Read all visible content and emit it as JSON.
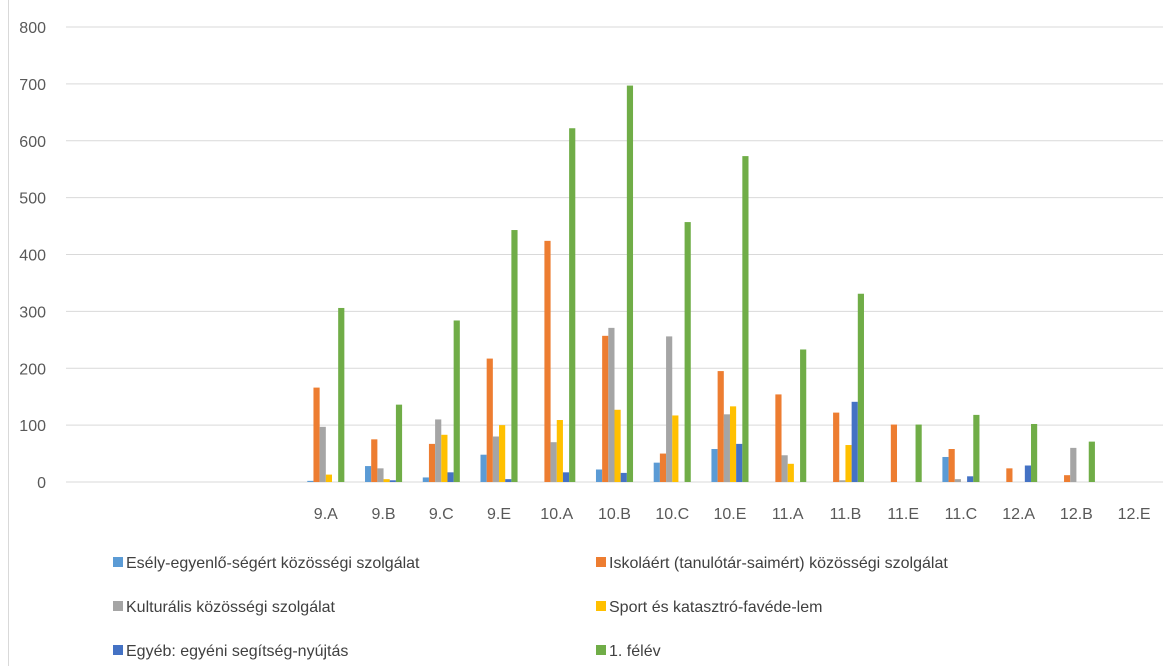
{
  "chart_data": {
    "type": "bar",
    "categories": [
      "",
      "",
      "",
      "",
      "9.A",
      "9.B",
      "9.C",
      "9.E",
      "10.A",
      "10.B",
      "10.C",
      "10.E",
      "11.A",
      "11.B",
      "11.E",
      "11.C",
      "12.A",
      "12.B",
      "12.E"
    ],
    "series": [
      {
        "name": "Esély-egyenlő-ségért közösségi szolgálat",
        "color": "#5b9bd5",
        "values": [
          0,
          0,
          0,
          0,
          2,
          28,
          8,
          48,
          0,
          22,
          34,
          58,
          0,
          0,
          0,
          44,
          0,
          0,
          0
        ]
      },
      {
        "name": "Iskoláért (tanulótár-saimért) közösségi szolgálat",
        "color": "#ed7d31",
        "values": [
          0,
          0,
          0,
          0,
          166,
          75,
          67,
          217,
          424,
          257,
          50,
          195,
          154,
          122,
          101,
          58,
          24,
          12,
          0
        ]
      },
      {
        "name": "Kulturális közösségi szolgálat",
        "color": "#a5a5a5",
        "values": [
          0,
          0,
          0,
          0,
          97,
          24,
          110,
          80,
          70,
          271,
          256,
          119,
          47,
          3,
          0,
          5,
          0,
          60,
          0
        ]
      },
      {
        "name": "Sport és  katasztró-favéde-lem",
        "color": "#ffc000",
        "values": [
          0,
          0,
          0,
          0,
          13,
          5,
          83,
          100,
          109,
          127,
          117,
          133,
          32,
          65,
          0,
          0,
          0,
          0,
          0
        ]
      },
      {
        "name": "Egyéb: egyéni segítség-nyújtás",
        "color": "#4472c4",
        "values": [
          0,
          0,
          0,
          0,
          0,
          3,
          17,
          5,
          17,
          16,
          0,
          67,
          0,
          141,
          0,
          10,
          29,
          0,
          0
        ]
      },
      {
        "name": "1. félév",
        "color": "#70ad47",
        "values": [
          0,
          0,
          0,
          0,
          306,
          136,
          284,
          443,
          622,
          697,
          457,
          573,
          233,
          331,
          101,
          118,
          102,
          71,
          0
        ]
      }
    ],
    "ylim": [
      0,
      800
    ],
    "yticks": [
      0,
      100,
      200,
      300,
      400,
      500,
      600,
      700,
      800
    ],
    "grid": true,
    "legend_position": "bottom"
  }
}
